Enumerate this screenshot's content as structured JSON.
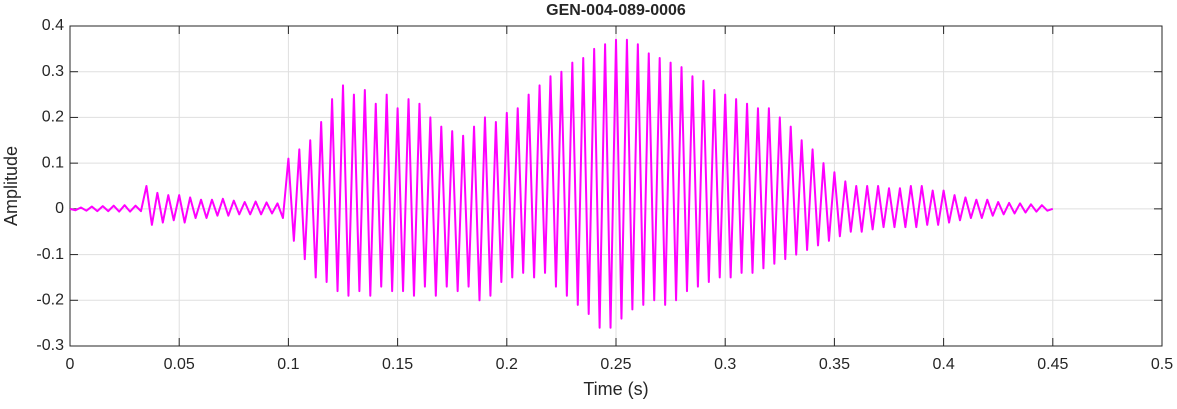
{
  "chart_data": {
    "type": "line",
    "title": "GEN-004-089-0006",
    "xlabel": "Time (s)",
    "ylabel": "Amplitude",
    "xlim": [
      0,
      0.5
    ],
    "ylim": [
      -0.3,
      0.4
    ],
    "xticks": [
      0,
      0.05,
      0.1,
      0.15,
      0.2,
      0.25,
      0.3,
      0.35,
      0.4,
      0.45,
      0.5
    ],
    "yticks": [
      -0.3,
      -0.2,
      -0.1,
      0,
      0.1,
      0.2,
      0.3,
      0.4
    ],
    "grid": true,
    "x": [
      0,
      0.0025,
      0.005,
      0.0075,
      0.01,
      0.0125,
      0.015,
      0.0175,
      0.02,
      0.0225,
      0.025,
      0.0275,
      0.03,
      0.0325,
      0.035,
      0.0375,
      0.04,
      0.0425,
      0.045,
      0.0475,
      0.05,
      0.0525,
      0.055,
      0.0575,
      0.06,
      0.0625,
      0.065,
      0.0675,
      0.07,
      0.0725,
      0.075,
      0.0775,
      0.08,
      0.0825,
      0.085,
      0.0875,
      0.09,
      0.0925,
      0.095,
      0.0975,
      0.1,
      0.1025,
      0.105,
      0.1075,
      0.11,
      0.1125,
      0.115,
      0.1175,
      0.12,
      0.1225,
      0.125,
      0.1275,
      0.13,
      0.1325,
      0.135,
      0.1375,
      0.14,
      0.1425,
      0.145,
      0.1475,
      0.15,
      0.1525,
      0.155,
      0.1575,
      0.16,
      0.1625,
      0.165,
      0.1675,
      0.17,
      0.1725,
      0.175,
      0.1775,
      0.18,
      0.1825,
      0.185,
      0.1875,
      0.19,
      0.1925,
      0.195,
      0.1975,
      0.2,
      0.2025,
      0.205,
      0.2075,
      0.21,
      0.2125,
      0.215,
      0.2175,
      0.22,
      0.2225,
      0.225,
      0.2275,
      0.23,
      0.2325,
      0.235,
      0.2375,
      0.24,
      0.2425,
      0.245,
      0.2475,
      0.25,
      0.2525,
      0.255,
      0.2575,
      0.26,
      0.2625,
      0.265,
      0.2675,
      0.27,
      0.2725,
      0.275,
      0.2775,
      0.28,
      0.2825,
      0.285,
      0.2875,
      0.29,
      0.2925,
      0.295,
      0.2975,
      0.3,
      0.3025,
      0.305,
      0.3075,
      0.31,
      0.3125,
      0.315,
      0.3175,
      0.32,
      0.3225,
      0.325,
      0.3275,
      0.33,
      0.3325,
      0.335,
      0.3375,
      0.34,
      0.3425,
      0.345,
      0.3475,
      0.35,
      0.3525,
      0.355,
      0.3575,
      0.36,
      0.3625,
      0.365,
      0.3675,
      0.37,
      0.3725,
      0.375,
      0.3775,
      0.38,
      0.3825,
      0.385,
      0.3875,
      0.39,
      0.3925,
      0.395,
      0.3975,
      0.4,
      0.4025,
      0.405,
      0.4075,
      0.41,
      0.4125,
      0.415,
      0.4175,
      0.42,
      0.4225,
      0.425,
      0.4275,
      0.43,
      0.4325,
      0.435,
      0.4375,
      0.44,
      0.4425,
      0.445,
      0.4475,
      0.45
    ],
    "series": [
      {
        "name": "Amplitude",
        "color": "#ff00ff",
        "values": [
          0,
          -0.003,
          0.003,
          -0.004,
          0.005,
          -0.005,
          0.006,
          -0.005,
          0.007,
          -0.006,
          0.008,
          -0.006,
          0.007,
          -0.005,
          0.05,
          -0.035,
          0.035,
          -0.03,
          0.03,
          -0.025,
          0.03,
          -0.03,
          0.025,
          -0.02,
          0.02,
          -0.02,
          0.02,
          -0.015,
          0.022,
          -0.015,
          0.018,
          -0.012,
          0.015,
          -0.012,
          0.016,
          -0.012,
          0.014,
          -0.01,
          0.012,
          -0.02,
          0.11,
          -0.07,
          0.13,
          -0.11,
          0.15,
          -0.15,
          0.19,
          -0.16,
          0.24,
          -0.18,
          0.27,
          -0.19,
          0.25,
          -0.18,
          0.26,
          -0.19,
          0.23,
          -0.17,
          0.25,
          -0.18,
          0.22,
          -0.18,
          0.24,
          -0.19,
          0.23,
          -0.17,
          0.2,
          -0.19,
          0.18,
          -0.17,
          0.17,
          -0.18,
          0.16,
          -0.17,
          0.18,
          -0.2,
          0.2,
          -0.19,
          0.19,
          -0.16,
          0.21,
          -0.15,
          0.22,
          -0.14,
          0.25,
          -0.15,
          0.27,
          -0.14,
          0.29,
          -0.17,
          0.3,
          -0.19,
          0.32,
          -0.21,
          0.33,
          -0.23,
          0.35,
          -0.26,
          0.36,
          -0.26,
          0.37,
          -0.24,
          0.37,
          -0.22,
          0.36,
          -0.21,
          0.34,
          -0.2,
          0.33,
          -0.21,
          0.32,
          -0.2,
          0.31,
          -0.18,
          0.29,
          -0.17,
          0.28,
          -0.16,
          0.26,
          -0.15,
          0.25,
          -0.15,
          0.24,
          -0.14,
          0.23,
          -0.14,
          0.22,
          -0.13,
          0.22,
          -0.12,
          0.2,
          -0.11,
          0.18,
          -0.1,
          0.15,
          -0.09,
          0.13,
          -0.08,
          0.1,
          -0.07,
          0.08,
          -0.06,
          0.06,
          -0.05,
          0.05,
          -0.05,
          0.05,
          -0.045,
          0.05,
          -0.04,
          0.045,
          -0.04,
          0.045,
          -0.04,
          0.05,
          -0.04,
          0.05,
          -0.035,
          0.04,
          -0.035,
          0.04,
          -0.03,
          0.03,
          -0.025,
          0.025,
          -0.02,
          0.02,
          -0.02,
          0.02,
          -0.015,
          0.015,
          -0.012,
          0.013,
          -0.01,
          0.012,
          -0.008,
          0.01,
          -0.006,
          0.008,
          -0.004,
          0
        ]
      }
    ]
  }
}
